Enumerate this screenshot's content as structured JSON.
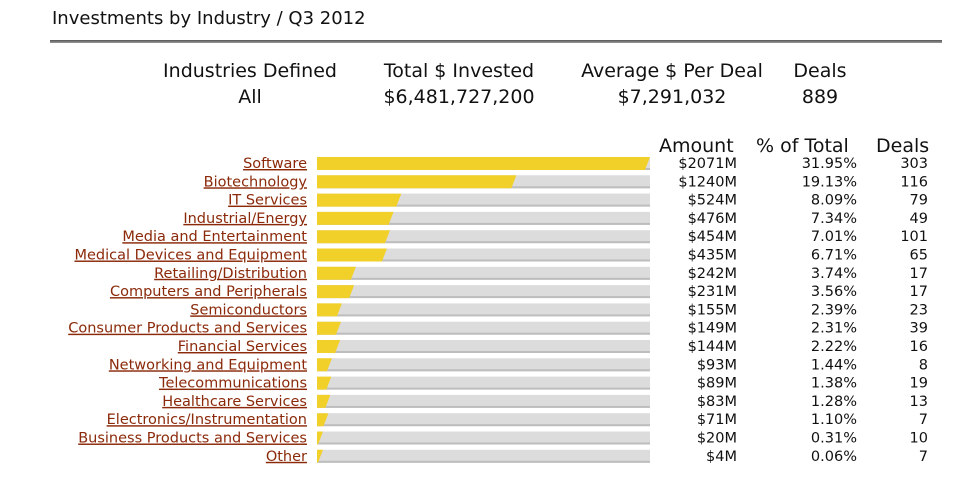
{
  "page_title": "Investments by Industry / Q3 2012",
  "summary": {
    "industries_label": "Industries Defined",
    "industries_value": "All",
    "total_label": "Total $ Invested",
    "total_value": "$6,481,727,200",
    "avg_label": "Average $ Per Deal",
    "avg_value": "$7,291,032",
    "deals_label": "Deals",
    "deals_value": "889"
  },
  "columns": {
    "amount": "Amount",
    "pct": "% of Total",
    "deals": "Deals"
  },
  "colors": {
    "bar": "#f2d02a",
    "track": "#dcdcdc",
    "link": "#8b2a0a"
  },
  "chart_data": {
    "type": "bar",
    "orientation": "horizontal",
    "categories": [
      "Software",
      "Biotechnology",
      "IT Services",
      "Industrial/Energy",
      "Media and Entertainment",
      "Medical Devices and Equipment",
      "Retailing/Distribution",
      "Computers and Peripherals",
      "Semiconductors",
      "Consumer Products and Services",
      "Financial Services",
      "Networking and Equipment",
      "Telecommunications",
      "Healthcare Services",
      "Electronics/Instrumentation",
      "Business Products and Services",
      "Other"
    ],
    "values": [
      2071,
      1240,
      524,
      476,
      454,
      435,
      242,
      231,
      155,
      149,
      144,
      93,
      89,
      83,
      71,
      20,
      4
    ],
    "amount_labels": [
      "$2071M",
      "$1240M",
      "$524M",
      "$476M",
      "$454M",
      "$435M",
      "$242M",
      "$231M",
      "$155M",
      "$149M",
      "$144M",
      "$93M",
      "$89M",
      "$83M",
      "$71M",
      "$20M",
      "$4M"
    ],
    "pct_labels": [
      "31.95%",
      "19.13%",
      "8.09%",
      "7.34%",
      "7.01%",
      "6.71%",
      "3.74%",
      "3.56%",
      "2.39%",
      "2.31%",
      "2.22%",
      "1.44%",
      "1.38%",
      "1.28%",
      "1.10%",
      "0.31%",
      "0.06%"
    ],
    "deals": [
      303,
      116,
      79,
      49,
      101,
      65,
      17,
      17,
      23,
      39,
      16,
      8,
      19,
      13,
      7,
      10,
      7
    ],
    "xlim": [
      0,
      2071
    ],
    "grid": false
  }
}
